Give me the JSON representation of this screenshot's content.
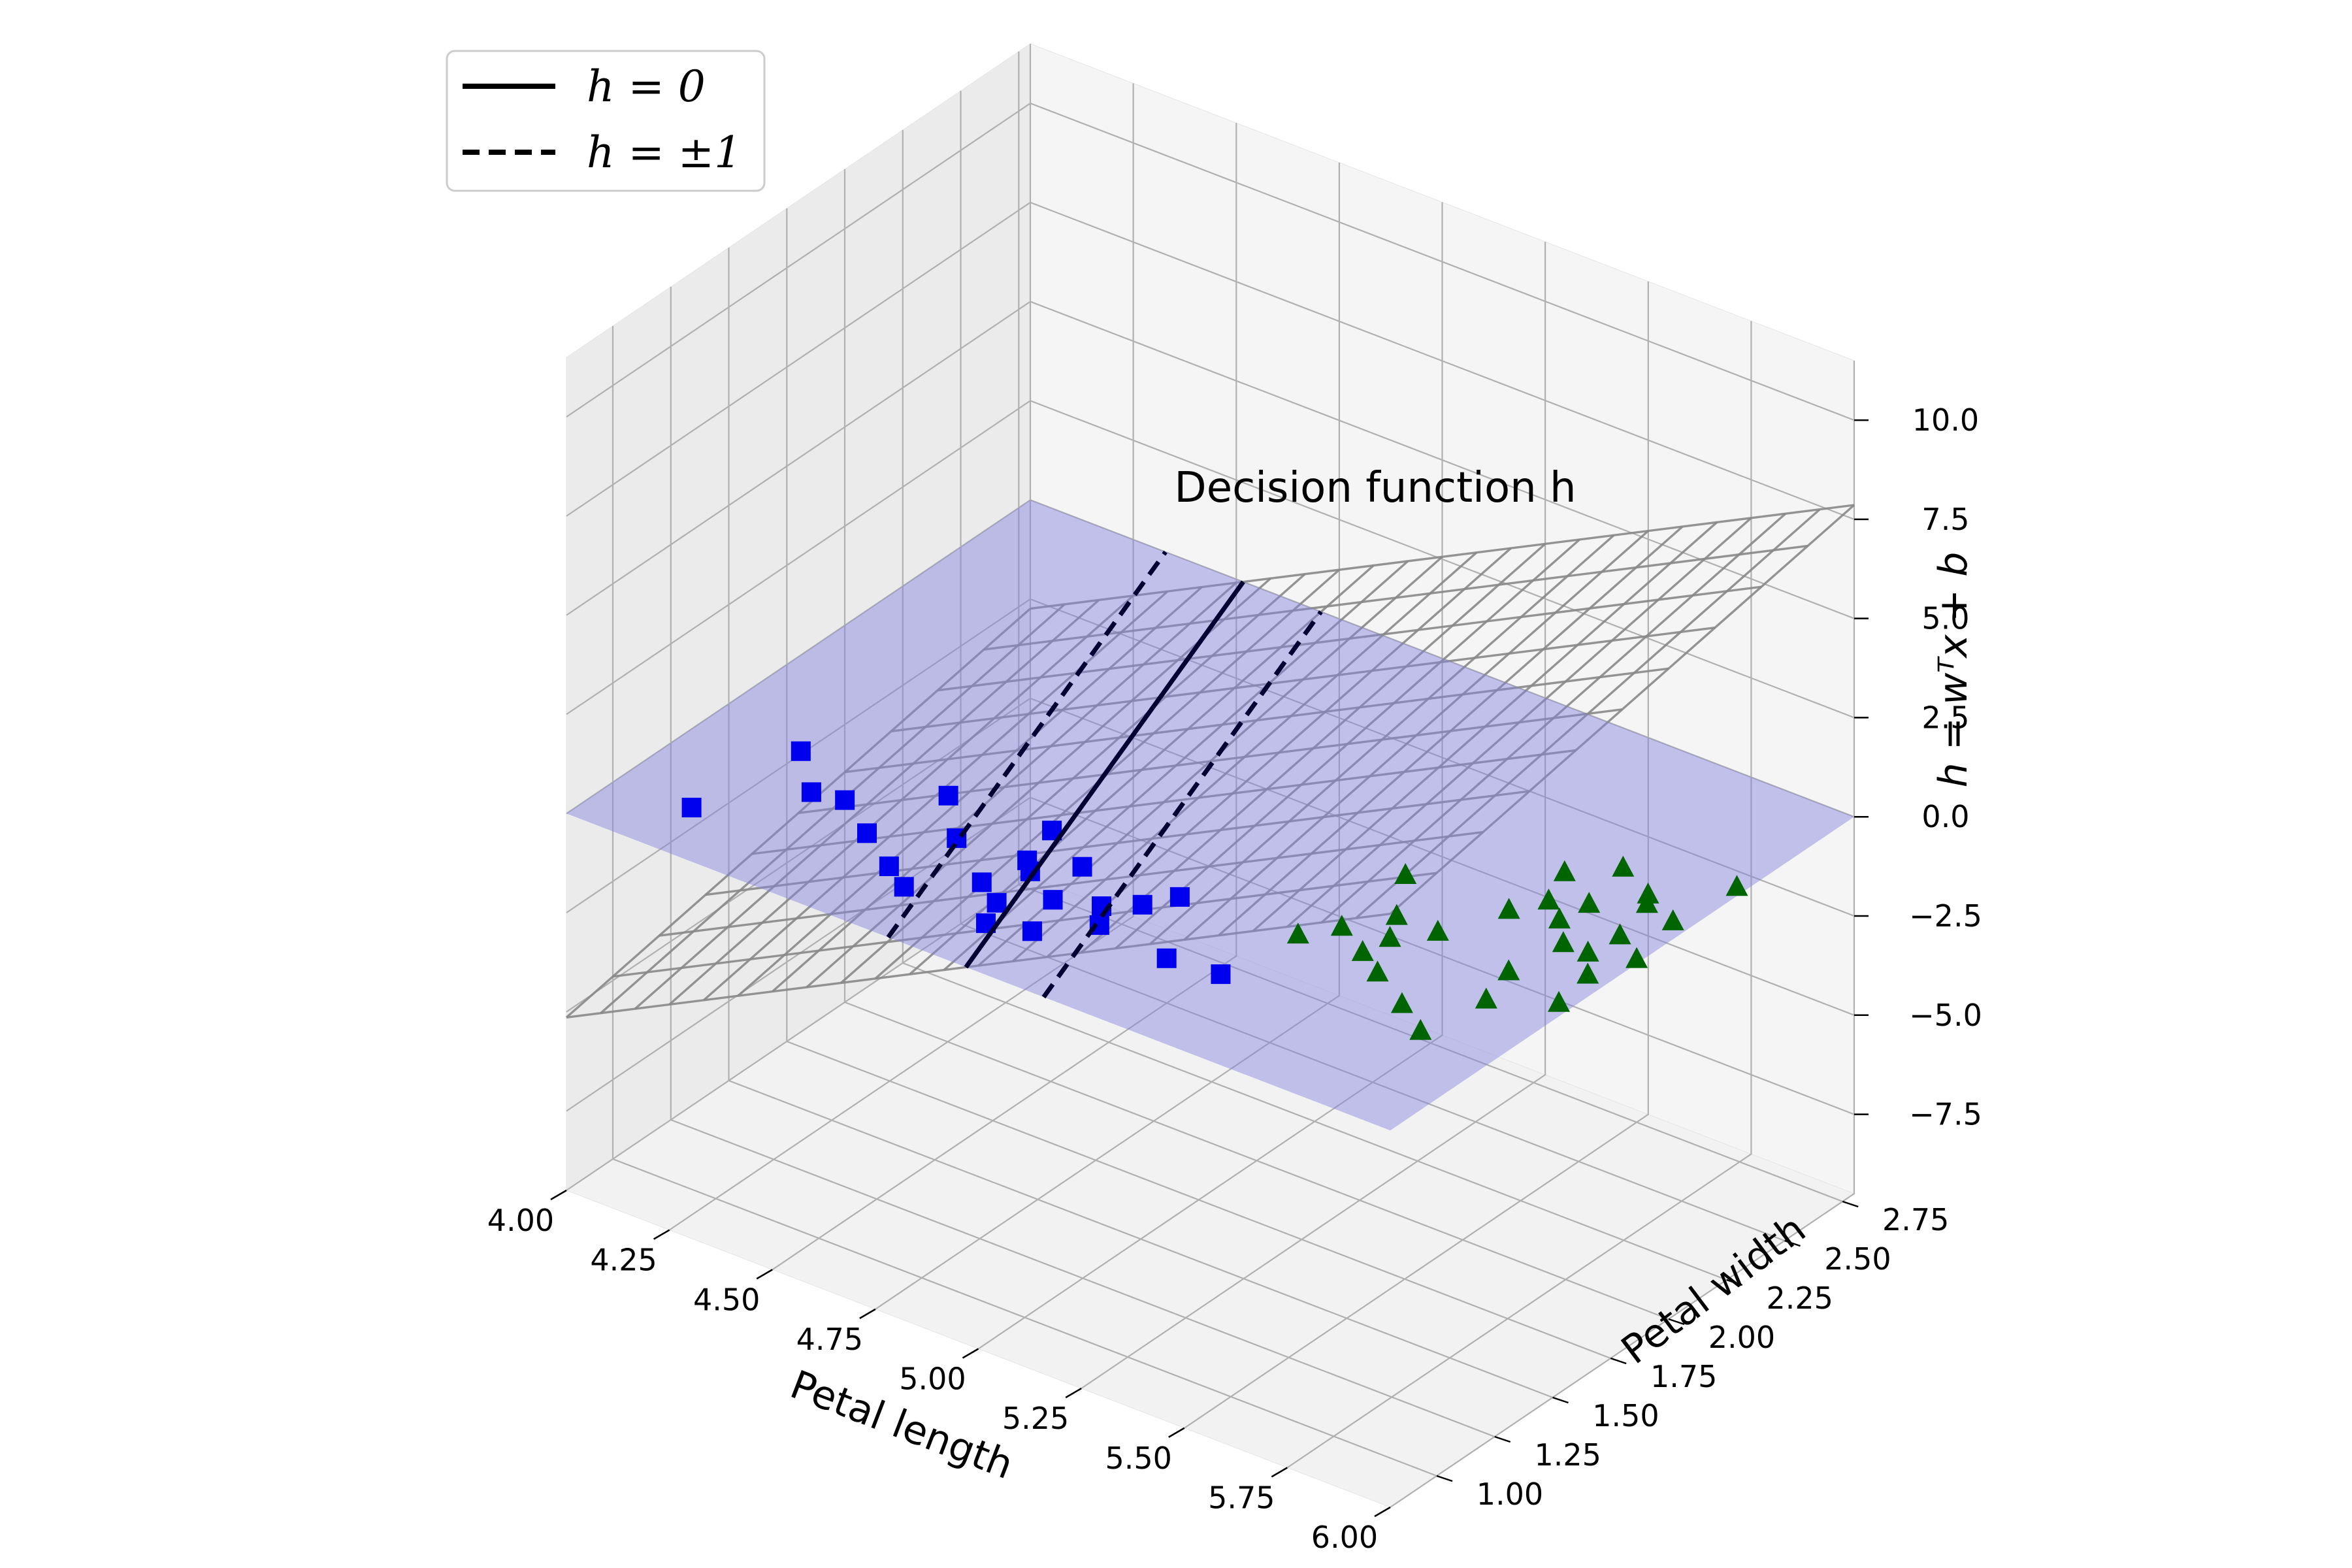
{
  "chart_data": {
    "type": "scatter",
    "projection": "3d",
    "title": "",
    "xlabel": "Petal length",
    "ylabel": "Petal width",
    "zlabel": "h = wᵀx + b",
    "xlim": [
      4.0,
      6.0
    ],
    "ylim": [
      0.8,
      2.8
    ],
    "zlim": [
      -9.5,
      11.5
    ],
    "xticks": [
      "4.00",
      "4.25",
      "4.50",
      "4.75",
      "5.00",
      "5.25",
      "5.50",
      "5.75",
      "6.00"
    ],
    "yticks": [
      "1.00",
      "1.25",
      "1.50",
      "1.75",
      "2.00",
      "2.25",
      "2.50",
      "2.75"
    ],
    "zticks": [
      "−7.5",
      "−5.0",
      "−2.5",
      "0.0",
      "2.5",
      "5.0",
      "7.5",
      "10.0"
    ],
    "grid": true,
    "annotation": "Decision function h",
    "legend": {
      "placement": "upper-left",
      "entries": [
        {
          "label": "h = 0",
          "style": "solid"
        },
        {
          "label": "h = ±1",
          "style": "dashed"
        }
      ]
    },
    "surface": {
      "type": "plane",
      "w": [
        5.3,
        1.2
      ],
      "b": -27.3,
      "wire_color": "#888888",
      "plane_z0_color": "#8080e0"
    },
    "lines": [
      {
        "name": "h = 0",
        "h": 0,
        "style": "solid",
        "color": "#000033"
      },
      {
        "name": "h = +1",
        "h": 1,
        "style": "dashed",
        "color": "#000033"
      },
      {
        "name": "h = -1",
        "h": -1,
        "style": "dashed",
        "color": "#000033"
      }
    ],
    "series": [
      {
        "name": "",
        "marker": "square",
        "color": "#0000ee",
        "points": [
          [
            4.22,
            1.42
          ],
          [
            4.4,
            1.29
          ],
          [
            4.55,
            1.47
          ],
          [
            4.18,
            1.02
          ],
          [
            4.51,
            1.19
          ],
          [
            4.33,
            1.27
          ],
          [
            4.62,
            1.09
          ],
          [
            4.66,
            1.31
          ],
          [
            4.79,
            1.49
          ],
          [
            4.82,
            1.33
          ],
          [
            4.87,
            1.11
          ],
          [
            4.69,
            1.03
          ],
          [
            4.85,
            1.29
          ],
          [
            4.92,
            1.39
          ],
          [
            4.8,
            1.17
          ],
          [
            4.95,
            1.21
          ],
          [
            4.99,
            1.05
          ],
          [
            5.04,
            1.26
          ],
          [
            5.08,
            1.18
          ],
          [
            5.1,
            1.33
          ],
          [
            5.26,
            1.15
          ],
          [
            5.14,
            1.42
          ],
          [
            4.9,
            1.01
          ],
          [
            5.38,
            1.17
          ]
        ]
      },
      {
        "name": "",
        "marker": "triangle",
        "color": "#006400",
        "points": [
          [
            5.44,
            1.86
          ],
          [
            5.56,
            1.58
          ],
          [
            5.62,
            1.68
          ],
          [
            5.68,
            1.88
          ],
          [
            5.55,
            1.48
          ],
          [
            5.72,
            1.98
          ],
          [
            5.82,
            1.63
          ],
          [
            5.79,
            2.03
          ],
          [
            5.85,
            1.48
          ],
          [
            5.88,
            2.12
          ],
          [
            5.46,
            1.55
          ],
          [
            5.52,
            1.68
          ],
          [
            5.73,
            1.33
          ],
          [
            5.84,
            1.83
          ],
          [
            5.97,
            1.58
          ],
          [
            5.96,
            2.09
          ],
          [
            5.98,
            2.33
          ],
          [
            5.9,
            1.83
          ],
          [
            5.62,
            1.42
          ],
          [
            5.76,
            2.23
          ],
          [
            5.82,
            1.25
          ],
          [
            5.95,
            1.74
          ],
          [
            5.86,
            2.16
          ],
          [
            5.99,
            1.88
          ],
          [
            5.78,
            1.92
          ],
          [
            5.41,
            1.45
          ],
          [
            5.91,
            1.95
          ],
          [
            5.68,
            2.12
          ]
        ]
      }
    ]
  }
}
